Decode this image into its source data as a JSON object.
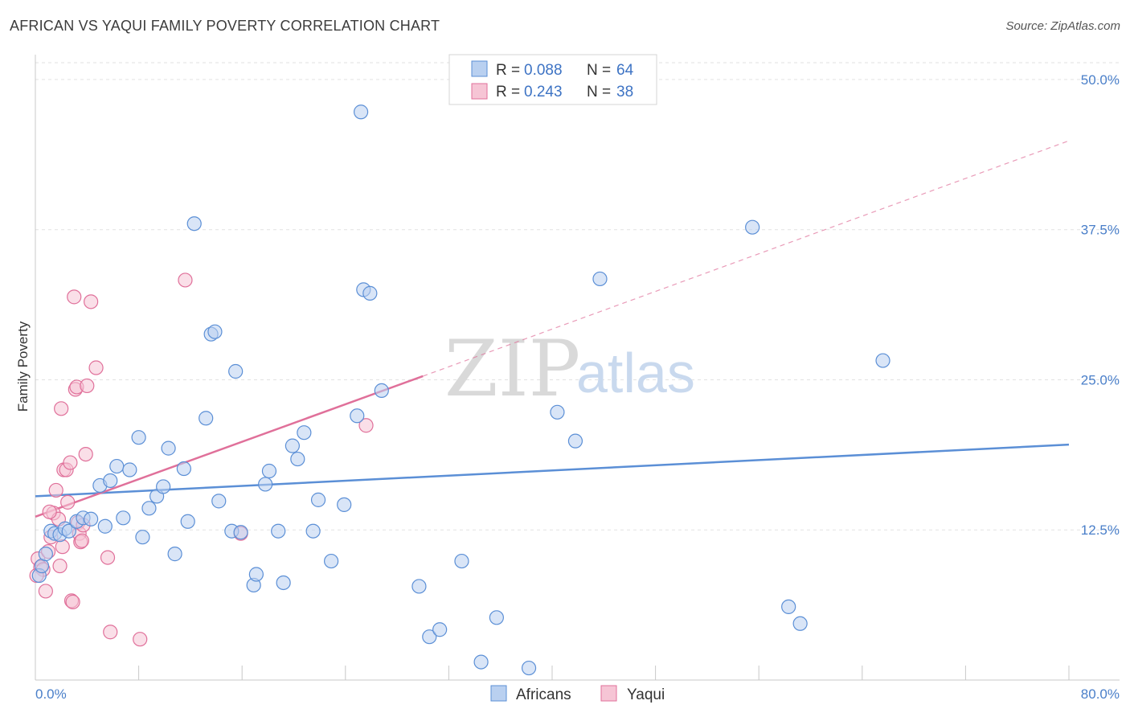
{
  "title": "AFRICAN VS YAQUI FAMILY POVERTY CORRELATION CHART",
  "source": "Source: ZipAtlas.com",
  "watermark": {
    "zip": "ZIP",
    "atlas": "atlas"
  },
  "colors": {
    "africans": "#5b8fd6",
    "africans_fill": "#b9d0f0",
    "yaqui": "#e0709a",
    "yaqui_fill": "#f6c5d5",
    "tick": "#4a7fc9"
  },
  "legend": {
    "rows": [
      {
        "r_label": "R = ",
        "r_value": "0.088",
        "n_label": "N = ",
        "n_value": "64"
      },
      {
        "r_label": "R = ",
        "r_value": "0.243",
        "n_label": "N = ",
        "n_value": "38"
      }
    ]
  },
  "chart_data": {
    "type": "scatter",
    "title": "AFRICAN VS YAQUI FAMILY POVERTY CORRELATION CHART",
    "xlabel": "",
    "ylabel": "Family Poverty",
    "xlim": [
      0,
      80
    ],
    "ylim": [
      0,
      51.4
    ],
    "x_ticks": [
      "0.0%",
      "80.0%"
    ],
    "y_ticks": [
      {
        "value": 12.5,
        "label": "12.5%"
      },
      {
        "value": 25.0,
        "label": "25.0%"
      },
      {
        "value": 37.5,
        "label": "37.5%"
      },
      {
        "value": 50.0,
        "label": "50.0%"
      }
    ],
    "grid": true,
    "legend_position": "top-center",
    "series": [
      {
        "name": "Africans",
        "points": [
          [
            0.3,
            8.7
          ],
          [
            0.5,
            9.5
          ],
          [
            0.8,
            10.5
          ],
          [
            1.2,
            12.4
          ],
          [
            1.5,
            12.2
          ],
          [
            1.9,
            12.1
          ],
          [
            2.3,
            12.6
          ],
          [
            2.6,
            12.4
          ],
          [
            3.2,
            13.2
          ],
          [
            3.7,
            13.5
          ],
          [
            4.3,
            13.4
          ],
          [
            5.0,
            16.2
          ],
          [
            5.4,
            12.8
          ],
          [
            5.8,
            16.6
          ],
          [
            6.3,
            17.8
          ],
          [
            6.8,
            13.5
          ],
          [
            7.3,
            17.5
          ],
          [
            8.0,
            20.2
          ],
          [
            8.3,
            11.9
          ],
          [
            8.8,
            14.3
          ],
          [
            9.4,
            15.3
          ],
          [
            9.9,
            16.1
          ],
          [
            10.3,
            19.3
          ],
          [
            10.8,
            10.5
          ],
          [
            11.5,
            17.6
          ],
          [
            11.8,
            13.2
          ],
          [
            12.3,
            38.0
          ],
          [
            13.2,
            21.8
          ],
          [
            13.6,
            28.8
          ],
          [
            13.9,
            29.0
          ],
          [
            14.2,
            14.9
          ],
          [
            15.2,
            12.4
          ],
          [
            15.5,
            25.7
          ],
          [
            15.9,
            12.3
          ],
          [
            16.9,
            7.9
          ],
          [
            17.1,
            8.8
          ],
          [
            17.8,
            16.3
          ],
          [
            18.1,
            17.4
          ],
          [
            18.8,
            12.4
          ],
          [
            19.2,
            8.1
          ],
          [
            19.9,
            19.5
          ],
          [
            20.3,
            18.4
          ],
          [
            20.8,
            20.6
          ],
          [
            21.5,
            12.4
          ],
          [
            21.9,
            15.0
          ],
          [
            22.9,
            9.9
          ],
          [
            23.9,
            14.6
          ],
          [
            24.9,
            22.0
          ],
          [
            25.4,
            32.5
          ],
          [
            25.9,
            32.2
          ],
          [
            25.2,
            47.3
          ],
          [
            26.8,
            24.1
          ],
          [
            29.7,
            7.8
          ],
          [
            30.5,
            3.6
          ],
          [
            31.3,
            4.2
          ],
          [
            33.0,
            9.9
          ],
          [
            34.5,
            1.5
          ],
          [
            35.7,
            5.2
          ],
          [
            38.2,
            1.0
          ],
          [
            40.4,
            22.3
          ],
          [
            41.8,
            19.9
          ],
          [
            43.7,
            33.4
          ],
          [
            55.5,
            37.7
          ],
          [
            58.3,
            6.1
          ],
          [
            59.2,
            4.7
          ],
          [
            65.6,
            26.6
          ]
        ]
      },
      {
        "name": "Yaqui",
        "points": [
          [
            0.2,
            10.1
          ],
          [
            0.4,
            9.4
          ],
          [
            0.6,
            9.2
          ],
          [
            0.8,
            7.4
          ],
          [
            1.0,
            10.7
          ],
          [
            1.2,
            11.9
          ],
          [
            1.4,
            13.9
          ],
          [
            1.6,
            15.8
          ],
          [
            1.8,
            13.4
          ],
          [
            1.9,
            9.5
          ],
          [
            2.0,
            22.6
          ],
          [
            2.1,
            11.1
          ],
          [
            2.2,
            17.5
          ],
          [
            2.4,
            17.5
          ],
          [
            2.5,
            14.8
          ],
          [
            2.7,
            18.1
          ],
          [
            2.8,
            6.6
          ],
          [
            2.9,
            6.5
          ],
          [
            3.0,
            31.9
          ],
          [
            3.1,
            24.2
          ],
          [
            3.2,
            24.4
          ],
          [
            3.3,
            13.1
          ],
          [
            3.4,
            12.2
          ],
          [
            3.5,
            11.5
          ],
          [
            3.6,
            11.6
          ],
          [
            3.7,
            12.9
          ],
          [
            3.9,
            18.8
          ],
          [
            4.0,
            24.5
          ],
          [
            4.3,
            31.5
          ],
          [
            4.7,
            26.0
          ],
          [
            5.6,
            10.2
          ],
          [
            5.8,
            4.0
          ],
          [
            8.1,
            3.4
          ],
          [
            11.6,
            33.3
          ],
          [
            15.9,
            12.2
          ],
          [
            25.6,
            21.2
          ],
          [
            0.1,
            8.7
          ],
          [
            1.1,
            14.0
          ]
        ]
      }
    ],
    "trend_lines": [
      {
        "name": "Africans",
        "x": [
          0,
          80
        ],
        "y": [
          15.3,
          19.6
        ],
        "style": "solid"
      },
      {
        "name": "Yaqui",
        "x": [
          0,
          30
        ],
        "y": [
          13.6,
          25.3
        ],
        "style": "solid"
      },
      {
        "name": "Yaqui",
        "x": [
          30,
          80
        ],
        "y": [
          25.3,
          44.9
        ],
        "style": "dashed"
      }
    ]
  }
}
